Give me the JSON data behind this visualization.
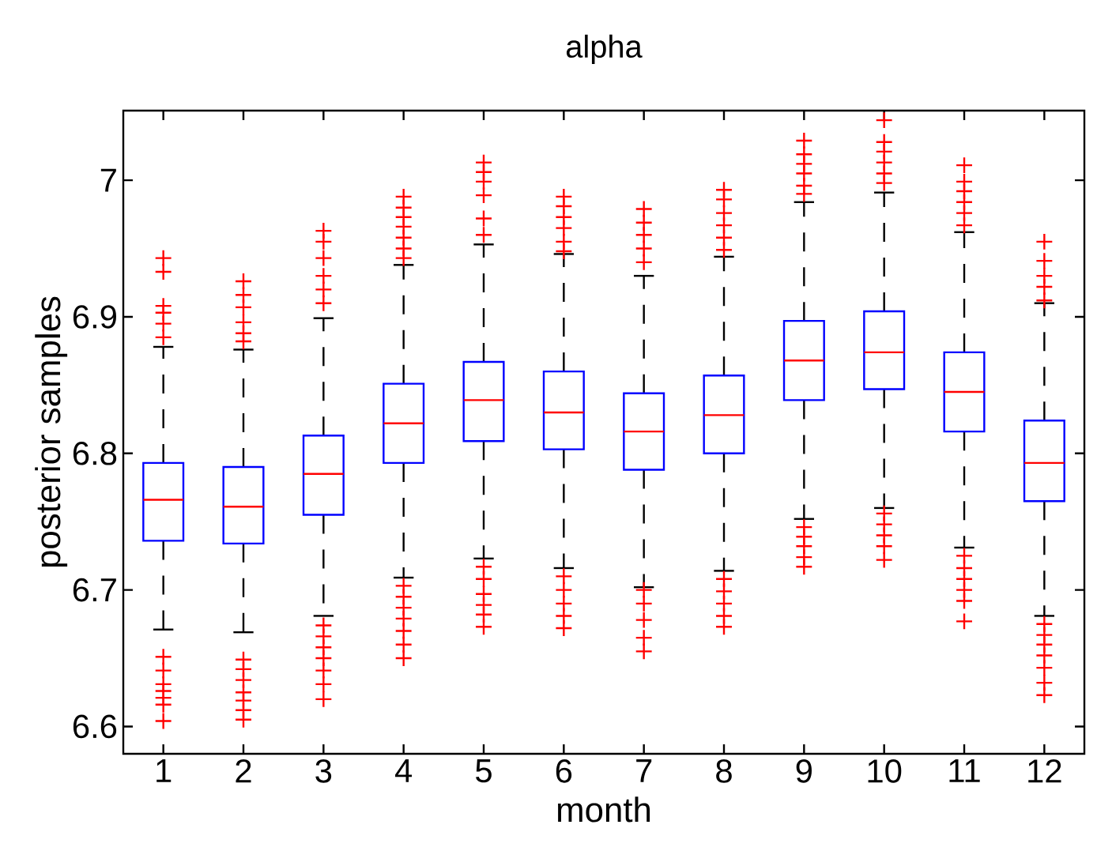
{
  "chart_data": {
    "type": "box",
    "title": "alpha",
    "xlabel": "month",
    "ylabel": "posterior samples",
    "categories": [
      "1",
      "2",
      "3",
      "4",
      "5",
      "6",
      "7",
      "8",
      "9",
      "10",
      "11",
      "12"
    ],
    "ylim": [
      6.58,
      7.051
    ],
    "yticks": [
      6.6,
      6.7,
      6.8,
      6.9,
      7
    ],
    "boxes": [
      {
        "low": 6.671,
        "q1": 6.736,
        "median": 6.766,
        "q3": 6.793,
        "high": 6.878,
        "outliers": [
          6.943,
          6.933,
          6.908,
          6.903,
          6.895,
          6.885,
          6.651,
          6.641,
          6.631,
          6.626,
          6.621,
          6.616,
          6.604
        ]
      },
      {
        "low": 6.669,
        "q1": 6.734,
        "median": 6.761,
        "q3": 6.79,
        "high": 6.876,
        "outliers": [
          6.926,
          6.916,
          6.907,
          6.896,
          6.888,
          6.882,
          6.649,
          6.642,
          6.634,
          6.625,
          6.619,
          6.612,
          6.605
        ]
      },
      {
        "low": 6.681,
        "q1": 6.755,
        "median": 6.785,
        "q3": 6.813,
        "high": 6.899,
        "outliers": [
          6.963,
          6.955,
          6.943,
          6.93,
          6.92,
          6.91,
          6.674,
          6.666,
          6.658,
          6.65,
          6.641,
          6.631,
          6.62
        ]
      },
      {
        "low": 6.709,
        "q1": 6.793,
        "median": 6.822,
        "q3": 6.851,
        "high": 6.938,
        "outliers": [
          6.988,
          6.98,
          6.973,
          6.966,
          6.958,
          6.95,
          6.943,
          6.703,
          6.695,
          6.687,
          6.679,
          6.67,
          6.66,
          6.65
        ]
      },
      {
        "low": 6.723,
        "q1": 6.809,
        "median": 6.839,
        "q3": 6.867,
        "high": 6.953,
        "outliers": [
          7.013,
          7.006,
          6.999,
          6.989,
          6.972,
          6.96,
          6.717,
          6.708,
          6.697,
          6.689,
          6.682,
          6.673
        ]
      },
      {
        "low": 6.716,
        "q1": 6.803,
        "median": 6.83,
        "q3": 6.86,
        "high": 6.946,
        "outliers": [
          6.988,
          6.981,
          6.973,
          6.965,
          6.955,
          6.948,
          6.71,
          6.7,
          6.69,
          6.681,
          6.672
        ]
      },
      {
        "low": 6.702,
        "q1": 6.788,
        "median": 6.816,
        "q3": 6.844,
        "high": 6.93,
        "outliers": [
          6.979,
          6.969,
          6.96,
          6.95,
          6.94,
          6.7,
          6.69,
          6.678,
          6.665,
          6.655
        ]
      },
      {
        "low": 6.714,
        "q1": 6.8,
        "median": 6.828,
        "q3": 6.857,
        "high": 6.944,
        "outliers": [
          6.993,
          6.986,
          6.976,
          6.967,
          6.958,
          6.949,
          6.708,
          6.699,
          6.69,
          6.681,
          6.673
        ]
      },
      {
        "low": 6.752,
        "q1": 6.839,
        "median": 6.868,
        "q3": 6.897,
        "high": 6.984,
        "outliers": [
          7.029,
          7.019,
          7.012,
          7.005,
          6.996,
          6.99,
          6.746,
          6.739,
          6.732,
          6.724,
          6.717
        ]
      },
      {
        "low": 6.76,
        "q1": 6.847,
        "median": 6.874,
        "q3": 6.904,
        "high": 6.991,
        "outliers": [
          7.044,
          7.028,
          7.021,
          7.013,
          7.005,
          6.998,
          6.756,
          6.748,
          6.74,
          6.732,
          6.722
        ]
      },
      {
        "low": 6.731,
        "q1": 6.816,
        "median": 6.845,
        "q3": 6.874,
        "high": 6.962,
        "outliers": [
          7.011,
          6.999,
          6.992,
          6.984,
          6.976,
          6.967,
          6.725,
          6.716,
          6.708,
          6.7,
          6.692,
          6.677
        ]
      },
      {
        "low": 6.681,
        "q1": 6.765,
        "median": 6.793,
        "q3": 6.824,
        "high": 6.91,
        "outliers": [
          6.955,
          6.941,
          6.93,
          6.922,
          6.912,
          6.675,
          6.667,
          6.66,
          6.652,
          6.643,
          6.632,
          6.623
        ]
      }
    ]
  }
}
